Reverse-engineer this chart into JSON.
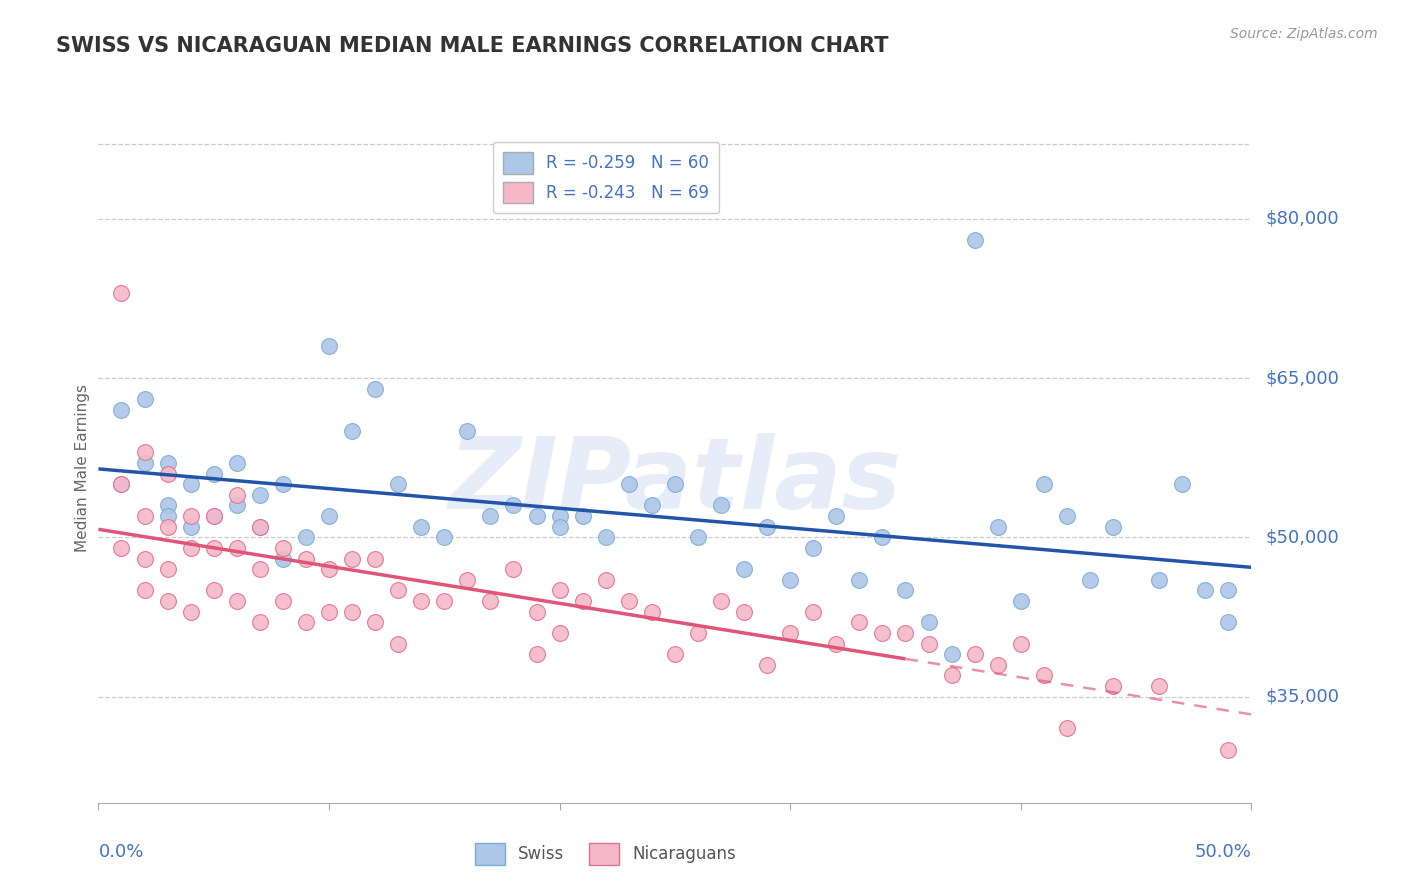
{
  "title": "SWISS VS NICARAGUAN MEDIAN MALE EARNINGS CORRELATION CHART",
  "source": "Source: ZipAtlas.com",
  "ylabel": "Median Male Earnings",
  "yticks": [
    35000,
    50000,
    65000,
    80000
  ],
  "ytick_labels": [
    "$35,000",
    "$50,000",
    "$65,000",
    "$80,000"
  ],
  "xlim": [
    0.0,
    50.0
  ],
  "ylim": [
    25000,
    88000
  ],
  "swiss_color": "#aec6e8",
  "swiss_edge": "#7aadd4",
  "nic_color": "#f4b8c8",
  "nic_edge": "#e07090",
  "trend_swiss_color": "#2255aa",
  "trend_nic_color": "#e05577",
  "legend_swiss_label": "R = -0.259   N = 60",
  "legend_nic_label": "R = -0.243   N = 69",
  "legend_swiss_box": "#aec6e8",
  "legend_nic_box": "#f4b8c8",
  "watermark": "ZIPatlas",
  "watermark_color": "#aec6e8",
  "swiss_x": [
    1,
    1,
    2,
    2,
    3,
    3,
    3,
    4,
    4,
    5,
    5,
    6,
    6,
    7,
    7,
    8,
    8,
    9,
    10,
    10,
    11,
    12,
    13,
    14,
    15,
    16,
    17,
    18,
    19,
    20,
    20,
    21,
    22,
    23,
    24,
    25,
    26,
    27,
    28,
    29,
    30,
    31,
    32,
    33,
    34,
    35,
    36,
    37,
    38,
    39,
    40,
    41,
    42,
    43,
    44,
    46,
    47,
    48,
    49,
    49
  ],
  "swiss_y": [
    62000,
    55000,
    63000,
    57000,
    53000,
    57000,
    52000,
    55000,
    51000,
    52000,
    56000,
    53000,
    57000,
    54000,
    51000,
    55000,
    48000,
    50000,
    68000,
    52000,
    60000,
    64000,
    55000,
    51000,
    50000,
    60000,
    52000,
    53000,
    52000,
    52000,
    51000,
    52000,
    50000,
    55000,
    53000,
    55000,
    50000,
    53000,
    47000,
    51000,
    46000,
    49000,
    52000,
    46000,
    50000,
    45000,
    42000,
    39000,
    78000,
    51000,
    44000,
    55000,
    52000,
    46000,
    51000,
    46000,
    55000,
    45000,
    42000,
    45000
  ],
  "nic_x": [
    1,
    1,
    1,
    2,
    2,
    2,
    2,
    3,
    3,
    3,
    3,
    4,
    4,
    4,
    5,
    5,
    5,
    6,
    6,
    6,
    7,
    7,
    7,
    8,
    8,
    9,
    9,
    10,
    10,
    11,
    11,
    12,
    12,
    13,
    13,
    14,
    15,
    16,
    17,
    18,
    19,
    19,
    20,
    20,
    21,
    22,
    23,
    24,
    25,
    26,
    27,
    28,
    29,
    30,
    31,
    32,
    33,
    34,
    35,
    36,
    37,
    38,
    39,
    40,
    41,
    42,
    44,
    46,
    49
  ],
  "nic_y": [
    73000,
    55000,
    49000,
    58000,
    52000,
    48000,
    45000,
    56000,
    51000,
    47000,
    44000,
    52000,
    49000,
    43000,
    52000,
    49000,
    45000,
    54000,
    49000,
    44000,
    51000,
    47000,
    42000,
    49000,
    44000,
    48000,
    42000,
    47000,
    43000,
    48000,
    43000,
    48000,
    42000,
    45000,
    40000,
    44000,
    44000,
    46000,
    44000,
    47000,
    43000,
    39000,
    45000,
    41000,
    44000,
    46000,
    44000,
    43000,
    39000,
    41000,
    44000,
    43000,
    38000,
    41000,
    43000,
    40000,
    42000,
    41000,
    41000,
    40000,
    37000,
    39000,
    38000,
    40000,
    37000,
    32000,
    36000,
    36000,
    30000
  ],
  "grid_color": "#cccccc",
  "background_color": "#ffffff",
  "title_color": "#333333",
  "axis_label_color": "#4472c4",
  "ytick_color": "#4472c4"
}
